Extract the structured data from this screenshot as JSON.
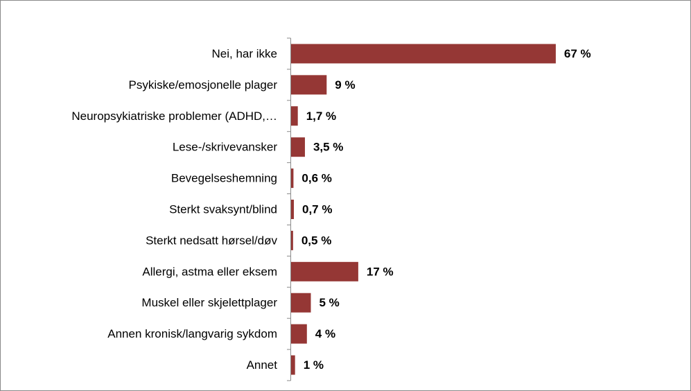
{
  "chart_data": {
    "type": "bar",
    "orientation": "horizontal",
    "categories": [
      "Nei, har ikke",
      "Psykiske/emosjonelle plager",
      "Neuropsykiatriske problemer (ADHD,…",
      "Lese-/skrivevansker",
      "Bevegelseshemning",
      "Sterkt svaksynt/blind",
      "Sterkt nedsatt hørsel/døv",
      "Allergi, astma eller eksem",
      "Muskel eller skjelettplager",
      "Annen kronisk/langvarig sykdom",
      "Annet"
    ],
    "values": [
      67,
      9,
      1.7,
      3.5,
      0.6,
      0.7,
      0.5,
      17,
      5,
      4,
      1
    ],
    "value_labels": [
      "67 %",
      "9 %",
      "1,7 %",
      "3,5 %",
      "0,6 %",
      "0,7 %",
      "0,5 %",
      "17 %",
      "5 %",
      "4 %",
      "1 %"
    ],
    "color": "#953735"
  }
}
